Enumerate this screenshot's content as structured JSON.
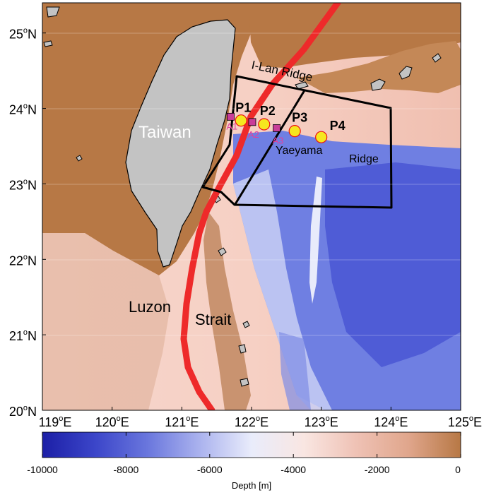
{
  "map": {
    "extent": {
      "lon": [
        119,
        125
      ],
      "lat": [
        20,
        25.4
      ]
    },
    "lat_ticks": [
      {
        "deg": "25",
        "hemi": "N"
      },
      {
        "deg": "24",
        "hemi": "N"
      },
      {
        "deg": "23",
        "hemi": "N"
      },
      {
        "deg": "22",
        "hemi": "N"
      },
      {
        "deg": "21",
        "hemi": "N"
      },
      {
        "deg": "20",
        "hemi": "N"
      }
    ],
    "lon_ticks": [
      {
        "deg": "119",
        "hemi": "E"
      },
      {
        "deg": "120",
        "hemi": "E"
      },
      {
        "deg": "121",
        "hemi": "E"
      },
      {
        "deg": "122",
        "hemi": "E"
      },
      {
        "deg": "123",
        "hemi": "E"
      },
      {
        "deg": "124",
        "hemi": "E"
      },
      {
        "deg": "125",
        "hemi": "E"
      }
    ],
    "degree_symbol": "o",
    "labels": {
      "taiwan": "Taiwan",
      "ilan_ridge": "I-Lan Ridge",
      "yaeyama": "Yaeyama",
      "ridge": "Ridge",
      "luzon": "Luzon",
      "strait": "Strait"
    },
    "stations": [
      {
        "name": "P1",
        "lon": 121.85,
        "lat": 23.84
      },
      {
        "name": "P2",
        "lon": 122.18,
        "lat": 23.79
      },
      {
        "name": "P3",
        "lon": 122.62,
        "lat": 23.7
      },
      {
        "name": "P4",
        "lon": 123.0,
        "lat": 23.62
      }
    ],
    "moorings": [
      {
        "name": "A1",
        "lon": 121.7,
        "lat": 23.89
      },
      {
        "name": "A2",
        "lon": 122.01,
        "lat": 23.82
      },
      {
        "name": "A3",
        "lon": 122.36,
        "lat": 23.74
      }
    ],
    "colors": {
      "land": "#c3c3c3",
      "coast": "#000000",
      "kuroshio": "#ee2a2a",
      "station_fill": "#f5e71f",
      "mooring_fill": "#c93d99",
      "mooring_label": "#e0409f",
      "box_line": "#000000"
    }
  },
  "colorbar": {
    "min": -10000,
    "max": 0,
    "ticks": [
      "-10000",
      "-8000",
      "-6000",
      "-4000",
      "-2000",
      "0"
    ],
    "label": "Depth [m]",
    "stops": [
      "#1c1fa6",
      "#3b45c9",
      "#6976dd",
      "#aab2ee",
      "#e9ecfb",
      "#f9e6e2",
      "#efc2b5",
      "#e0a68c",
      "#b77845"
    ]
  }
}
